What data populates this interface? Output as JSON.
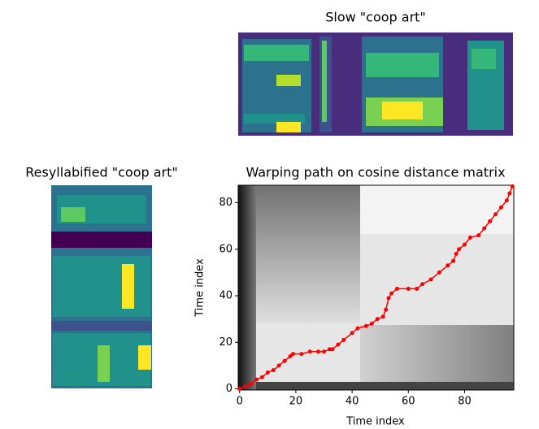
{
  "chart_data": [
    {
      "type": "image",
      "title": "Slow \"coop art\""
    },
    {
      "type": "image",
      "title": "Resyllabified \"coop art\""
    },
    {
      "type": "line",
      "title": "Warping path on cosine distance matrix",
      "xlabel": "Time index",
      "ylabel": "Time index",
      "x": [
        0,
        2,
        4,
        6,
        8,
        10,
        12,
        14,
        16,
        18,
        19,
        22,
        25,
        28,
        30,
        32,
        33,
        35,
        37,
        40,
        42,
        45,
        47,
        49,
        51,
        52,
        53,
        54,
        56,
        60,
        63,
        65,
        68,
        71,
        74,
        76,
        77,
        78,
        80,
        82,
        85,
        87,
        89,
        91,
        93,
        95,
        96,
        97
      ],
      "values": [
        0,
        1,
        2,
        4,
        5,
        7,
        8,
        10,
        12,
        14,
        15,
        15,
        16,
        16,
        16,
        17,
        17,
        19,
        21,
        24,
        26,
        27,
        28,
        30,
        31,
        34,
        39,
        41,
        43,
        43,
        43,
        45,
        47,
        50,
        53,
        55,
        58,
        60,
        62,
        65,
        66,
        69,
        72,
        75,
        78,
        81,
        84,
        87
      ],
      "color": "#ff0000",
      "xlim": [
        -0.5,
        97.5
      ],
      "ylim": [
        -0.5,
        87.5
      ],
      "xticks": [
        0,
        20,
        40,
        60,
        80
      ],
      "yticks": [
        0,
        20,
        40,
        60,
        80
      ]
    }
  ]
}
